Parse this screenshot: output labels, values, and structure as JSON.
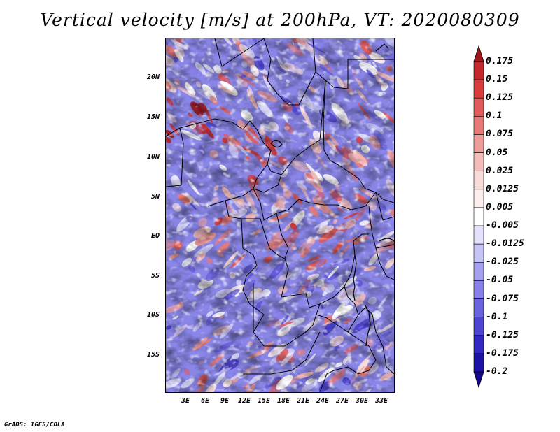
{
  "title": "Vertical velocity [m/s] at 200hPa, VT: 2020080309",
  "credit": "GrADS: IGES/COLA",
  "map": {
    "variable": "Vertical velocity",
    "units": "m/s",
    "level": "200hPa",
    "valid_time": "2020080309",
    "lat_ticks": [
      "20N",
      "15N",
      "10N",
      "5N",
      "EQ",
      "5S",
      "10S",
      "15S"
    ],
    "lon_ticks": [
      "3E",
      "6E",
      "9E",
      "12E",
      "15E",
      "18E",
      "21E",
      "24E",
      "27E",
      "30E",
      "33E"
    ],
    "lat_range": [
      -20,
      24
    ],
    "lon_range": [
      0,
      35
    ]
  },
  "colorbar": {
    "levels": [
      "0.175",
      "0.15",
      "0.125",
      "0.1",
      "0.075",
      "0.05",
      "0.025",
      "0.0125",
      "0.005",
      "-0.005",
      "-0.0125",
      "-0.025",
      "-0.05",
      "-0.075",
      "-0.1",
      "-0.125",
      "-0.175",
      "-0.2"
    ],
    "colors": [
      "#a1151b",
      "#c4282c",
      "#d83c3c",
      "#e05a5a",
      "#e77a78",
      "#ee9c99",
      "#f4bcb8",
      "#f9dcd9",
      "#fbeeed",
      "#ffffff",
      "#e3e1fb",
      "#c6c3f5",
      "#a5a0ee",
      "#8780e6",
      "#6b62dd",
      "#4e44d2",
      "#3326c2",
      "#1e12a6",
      "#12078a"
    ]
  }
}
